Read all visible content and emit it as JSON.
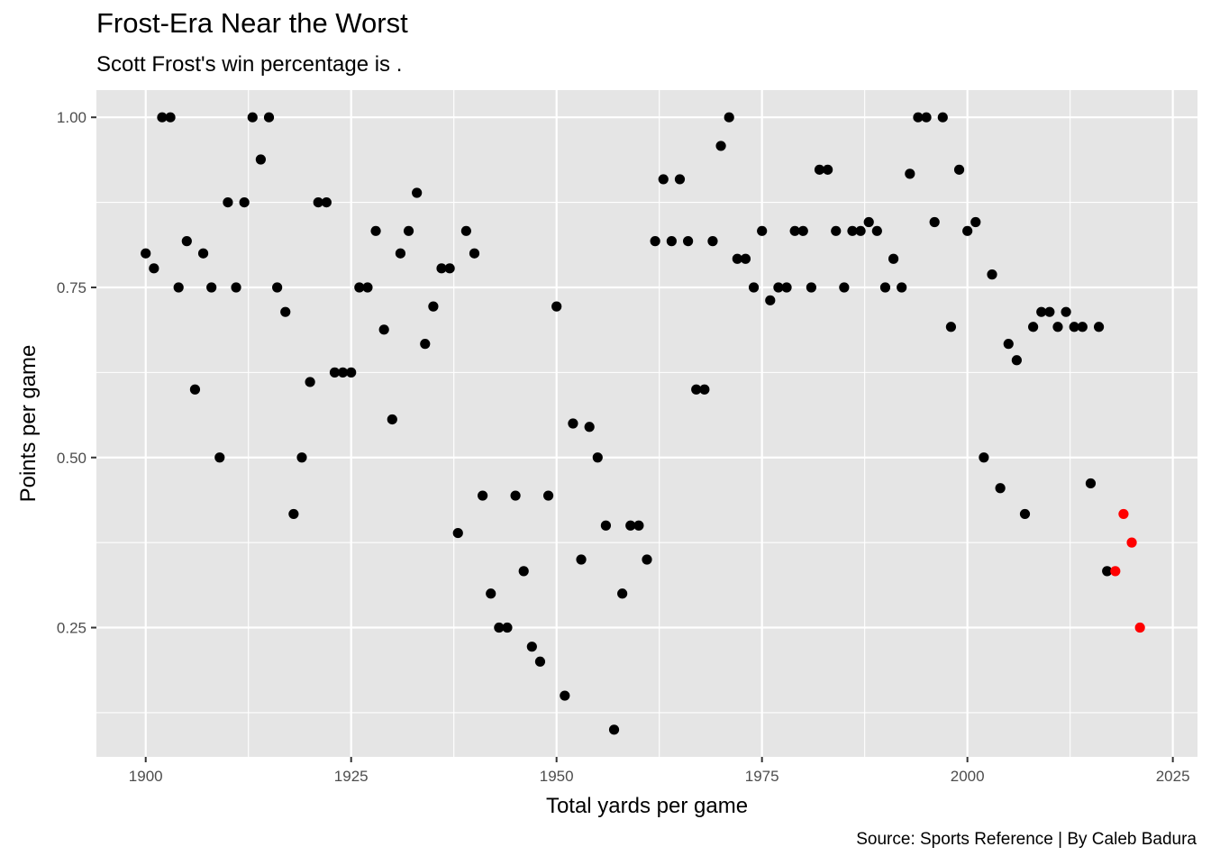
{
  "chart_data": {
    "type": "scatter",
    "title": "Frost-Era Near the Worst",
    "subtitle": "Scott Frost's win percentage is .",
    "caption": "Source: Sports Reference | By Caleb Badura",
    "xlabel": "Total yards per game",
    "ylabel": "Points per game",
    "xlim": [
      1894,
      2028
    ],
    "ylim": [
      0.06,
      1.04
    ],
    "x_ticks": [
      1900,
      1925,
      1950,
      1975,
      2000,
      2025
    ],
    "x_tick_labels": [
      "1900",
      "1925",
      "1950",
      "1975",
      "2000",
      "2025"
    ],
    "y_ticks": [
      0.25,
      0.5,
      0.75,
      1.0
    ],
    "y_tick_labels": [
      "0.25",
      "0.50",
      "0.75",
      "1.00"
    ],
    "grid": true,
    "colors": {
      "panel": "#e5e5e5",
      "grid": "#ffffff",
      "default_point": "#000000",
      "highlight_point": "#ff0000"
    },
    "series": [
      {
        "color": "#000000",
        "points": [
          [
            1900,
            0.8
          ],
          [
            1901,
            0.778
          ],
          [
            1902,
            1.0
          ],
          [
            1903,
            1.0
          ],
          [
            1904,
            0.75
          ],
          [
            1905,
            0.818
          ],
          [
            1906,
            0.6
          ],
          [
            1907,
            0.8
          ],
          [
            1908,
            0.75
          ],
          [
            1909,
            0.5
          ],
          [
            1910,
            0.875
          ],
          [
            1911,
            0.75
          ],
          [
            1912,
            0.875
          ],
          [
            1913,
            1.0
          ],
          [
            1914,
            0.938
          ],
          [
            1915,
            1.0
          ],
          [
            1916,
            0.75
          ],
          [
            1917,
            0.714
          ],
          [
            1918,
            0.417
          ],
          [
            1919,
            0.5
          ],
          [
            1920,
            0.611
          ],
          [
            1921,
            0.875
          ],
          [
            1922,
            0.875
          ],
          [
            1923,
            0.625
          ],
          [
            1924,
            0.625
          ],
          [
            1925,
            0.625
          ],
          [
            1926,
            0.75
          ],
          [
            1927,
            0.75
          ],
          [
            1928,
            0.833
          ],
          [
            1929,
            0.688
          ],
          [
            1930,
            0.556
          ],
          [
            1931,
            0.8
          ],
          [
            1932,
            0.833
          ],
          [
            1933,
            0.889
          ],
          [
            1934,
            0.667
          ],
          [
            1935,
            0.722
          ],
          [
            1936,
            0.778
          ],
          [
            1937,
            0.778
          ],
          [
            1938,
            0.389
          ],
          [
            1939,
            0.833
          ],
          [
            1940,
            0.8
          ],
          [
            1941,
            0.444
          ],
          [
            1942,
            0.3
          ],
          [
            1943,
            0.25
          ],
          [
            1944,
            0.25
          ],
          [
            1945,
            0.444
          ],
          [
            1946,
            0.333
          ],
          [
            1947,
            0.222
          ],
          [
            1948,
            0.2
          ],
          [
            1949,
            0.444
          ],
          [
            1950,
            0.722
          ],
          [
            1951,
            0.15
          ],
          [
            1952,
            0.55
          ],
          [
            1953,
            0.35
          ],
          [
            1954,
            0.545
          ],
          [
            1955,
            0.5
          ],
          [
            1956,
            0.4
          ],
          [
            1957,
            0.1
          ],
          [
            1958,
            0.3
          ],
          [
            1959,
            0.4
          ],
          [
            1960,
            0.4
          ],
          [
            1961,
            0.35
          ],
          [
            1962,
            0.818
          ],
          [
            1963,
            0.909
          ],
          [
            1964,
            0.818
          ],
          [
            1965,
            0.909
          ],
          [
            1966,
            0.818
          ],
          [
            1967,
            0.6
          ],
          [
            1968,
            0.6
          ],
          [
            1969,
            0.818
          ],
          [
            1970,
            0.958
          ],
          [
            1971,
            1.0
          ],
          [
            1972,
            0.792
          ],
          [
            1973,
            0.792
          ],
          [
            1974,
            0.75
          ],
          [
            1975,
            0.833
          ],
          [
            1976,
            0.731
          ],
          [
            1977,
            0.75
          ],
          [
            1978,
            0.75
          ],
          [
            1979,
            0.833
          ],
          [
            1980,
            0.833
          ],
          [
            1981,
            0.75
          ],
          [
            1982,
            0.923
          ],
          [
            1983,
            0.923
          ],
          [
            1984,
            0.833
          ],
          [
            1985,
            0.75
          ],
          [
            1986,
            0.833
          ],
          [
            1987,
            0.833
          ],
          [
            1988,
            0.846
          ],
          [
            1989,
            0.833
          ],
          [
            1990,
            0.75
          ],
          [
            1991,
            0.792
          ],
          [
            1992,
            0.75
          ],
          [
            1993,
            0.917
          ],
          [
            1994,
            1.0
          ],
          [
            1995,
            1.0
          ],
          [
            1996,
            0.846
          ],
          [
            1997,
            1.0
          ],
          [
            1998,
            0.692
          ],
          [
            1999,
            0.923
          ],
          [
            2000,
            0.833
          ],
          [
            2001,
            0.846
          ],
          [
            2002,
            0.5
          ],
          [
            2003,
            0.769
          ],
          [
            2004,
            0.455
          ],
          [
            2005,
            0.667
          ],
          [
            2006,
            0.643
          ],
          [
            2007,
            0.417
          ],
          [
            2008,
            0.692
          ],
          [
            2009,
            0.714
          ],
          [
            2010,
            0.714
          ],
          [
            2011,
            0.692
          ],
          [
            2012,
            0.714
          ],
          [
            2013,
            0.692
          ],
          [
            2014,
            0.692
          ],
          [
            2015,
            0.462
          ],
          [
            2016,
            0.692
          ],
          [
            2017,
            0.333
          ]
        ]
      },
      {
        "color": "#ff0000",
        "points": [
          [
            2018,
            0.333
          ],
          [
            2019,
            0.417
          ],
          [
            2020,
            0.375
          ],
          [
            2021,
            0.25
          ]
        ]
      }
    ]
  }
}
